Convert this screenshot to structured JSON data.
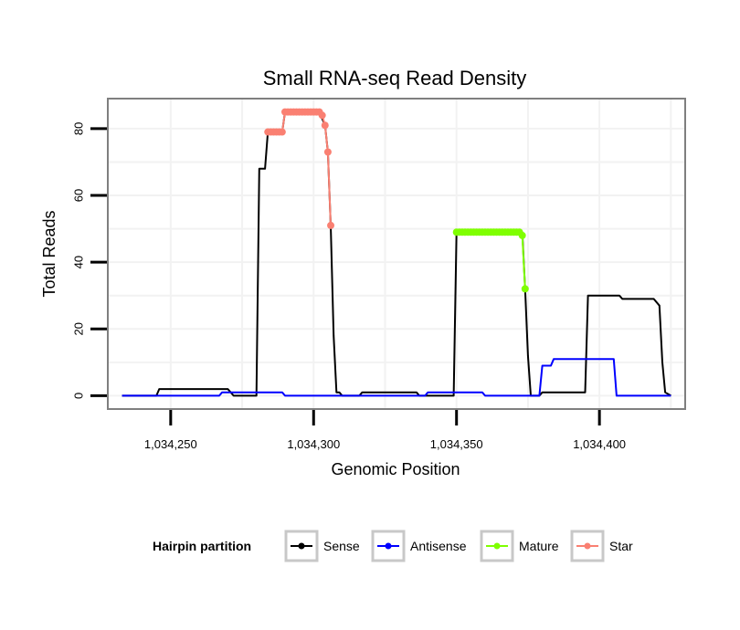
{
  "chart_data": {
    "type": "line",
    "title": "Small RNA-seq Read Density",
    "xlabel": "Genomic Position",
    "ylabel": "Total Reads",
    "xlim": [
      1034228,
      1034430
    ],
    "ylim": [
      -4,
      89
    ],
    "x_ticks": [
      {
        "value": 1034250,
        "label": "1,034,250"
      },
      {
        "value": 1034300,
        "label": "1,034,300"
      },
      {
        "value": 1034350,
        "label": "1,034,350"
      },
      {
        "value": 1034400,
        "label": "1,034,400"
      }
    ],
    "y_ticks": [
      {
        "value": 0,
        "label": "0"
      },
      {
        "value": 20,
        "label": "20"
      },
      {
        "value": 40,
        "label": "40"
      },
      {
        "value": 60,
        "label": "60"
      },
      {
        "value": 80,
        "label": "80"
      }
    ],
    "legend": {
      "title": "Hairpin partition",
      "position": "bottom",
      "entries": [
        {
          "name": "Sense",
          "color": "#000000"
        },
        {
          "name": "Antisense",
          "color": "#0000ff"
        },
        {
          "name": "Mature",
          "color": "#7fff00"
        },
        {
          "name": "Star",
          "color": "#fa8072"
        }
      ]
    },
    "series": [
      {
        "name": "Sense",
        "color": "#000000",
        "marker": false,
        "points": [
          [
            1034233,
            0
          ],
          [
            1034245,
            0
          ],
          [
            1034246,
            2
          ],
          [
            1034270,
            2
          ],
          [
            1034272,
            0
          ],
          [
            1034280,
            0
          ],
          [
            1034281,
            68
          ],
          [
            1034283,
            68
          ],
          [
            1034284,
            79
          ],
          [
            1034289,
            79
          ],
          [
            1034290,
            85
          ],
          [
            1034302,
            85
          ],
          [
            1034304,
            81
          ],
          [
            1034305,
            73
          ],
          [
            1034306,
            51
          ],
          [
            1034307,
            18
          ],
          [
            1034308,
            1
          ],
          [
            1034309,
            1
          ],
          [
            1034310,
            0
          ],
          [
            1034316,
            0
          ],
          [
            1034317,
            1
          ],
          [
            1034336,
            1
          ],
          [
            1034337,
            0
          ],
          [
            1034349,
            0
          ],
          [
            1034350,
            49
          ],
          [
            1034373,
            49
          ],
          [
            1034374,
            32
          ],
          [
            1034375,
            12
          ],
          [
            1034376,
            0
          ],
          [
            1034379,
            0
          ],
          [
            1034380,
            1
          ],
          [
            1034395,
            1
          ],
          [
            1034396,
            30
          ],
          [
            1034407,
            30
          ],
          [
            1034408,
            29
          ],
          [
            1034419,
            29
          ],
          [
            1034421,
            27
          ],
          [
            1034422,
            10
          ],
          [
            1034423,
            1
          ],
          [
            1034425,
            0
          ]
        ]
      },
      {
        "name": "Antisense",
        "color": "#0000ff",
        "marker": false,
        "points": [
          [
            1034233,
            0
          ],
          [
            1034267,
            0
          ],
          [
            1034268,
            1
          ],
          [
            1034289,
            1
          ],
          [
            1034290,
            0
          ],
          [
            1034339,
            0
          ],
          [
            1034340,
            1
          ],
          [
            1034359,
            1
          ],
          [
            1034360,
            0
          ],
          [
            1034379,
            0
          ],
          [
            1034380,
            9
          ],
          [
            1034383,
            9
          ],
          [
            1034384,
            11
          ],
          [
            1034405,
            11
          ],
          [
            1034406,
            0
          ],
          [
            1034425,
            0
          ]
        ]
      },
      {
        "name": "Mature",
        "color": "#7fff00",
        "marker": true,
        "points": [
          [
            1034350,
            49
          ],
          [
            1034351,
            49
          ],
          [
            1034352,
            49
          ],
          [
            1034353,
            49
          ],
          [
            1034354,
            49
          ],
          [
            1034355,
            49
          ],
          [
            1034356,
            49
          ],
          [
            1034357,
            49
          ],
          [
            1034358,
            49
          ],
          [
            1034359,
            49
          ],
          [
            1034360,
            49
          ],
          [
            1034361,
            49
          ],
          [
            1034362,
            49
          ],
          [
            1034363,
            49
          ],
          [
            1034364,
            49
          ],
          [
            1034365,
            49
          ],
          [
            1034366,
            49
          ],
          [
            1034367,
            49
          ],
          [
            1034368,
            49
          ],
          [
            1034369,
            49
          ],
          [
            1034370,
            49
          ],
          [
            1034371,
            49
          ],
          [
            1034372,
            49
          ],
          [
            1034373,
            48
          ],
          [
            1034374,
            32
          ]
        ]
      },
      {
        "name": "Star",
        "color": "#fa8072",
        "marker": true,
        "points": [
          [
            1034284,
            79
          ],
          [
            1034285,
            79
          ],
          [
            1034286,
            79
          ],
          [
            1034287,
            79
          ],
          [
            1034288,
            79
          ],
          [
            1034289,
            79
          ],
          [
            1034290,
            85
          ],
          [
            1034291,
            85
          ],
          [
            1034292,
            85
          ],
          [
            1034293,
            85
          ],
          [
            1034294,
            85
          ],
          [
            1034295,
            85
          ],
          [
            1034296,
            85
          ],
          [
            1034297,
            85
          ],
          [
            1034298,
            85
          ],
          [
            1034299,
            85
          ],
          [
            1034300,
            85
          ],
          [
            1034301,
            85
          ],
          [
            1034302,
            85
          ],
          [
            1034303,
            84
          ],
          [
            1034304,
            81
          ],
          [
            1034305,
            73
          ],
          [
            1034306,
            51
          ]
        ]
      }
    ]
  }
}
